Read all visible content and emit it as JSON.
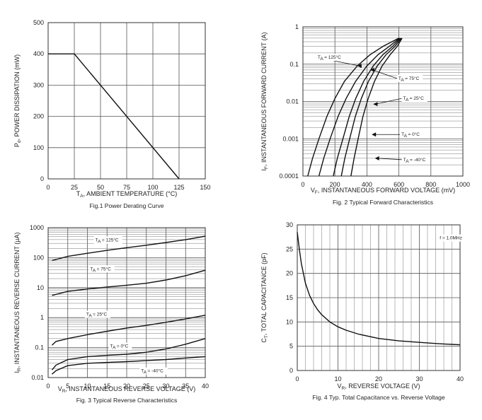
{
  "chart_data": [
    {
      "type": "line",
      "title": "Fig.1  Power Derating Curve",
      "xlabel": "T_A, AMBIENT TEMPERATURE (°C)",
      "xlabel_main": "T",
      "xlabel_sub": "A",
      "xlabel_rest": ", AMBIENT TEMPERATURE (°C)",
      "ylabel": "P_d, POWER DISSIPATION (mW)",
      "ylabel_main": "P",
      "ylabel_sub": "d",
      "ylabel_rest": ", POWER DISSIPATION (mW)",
      "xlim": [
        0,
        150
      ],
      "ylim": [
        0,
        500
      ],
      "x_ticks": [
        0,
        25,
        50,
        75,
        100,
        125,
        150
      ],
      "y_ticks": [
        0,
        100,
        200,
        300,
        400,
        500
      ],
      "grid": true,
      "series": [
        {
          "name": "Power Dissipation",
          "x": [
            0,
            25,
            125
          ],
          "y": [
            400,
            400,
            0
          ]
        }
      ]
    },
    {
      "type": "line",
      "title": "Fig. 2  Typical Forward Characteristics",
      "xlabel": "V_F, INSTANTANEOUS FORWARD VOLTAGE (mV)",
      "xlabel_main": "V",
      "xlabel_sub": "F",
      "xlabel_rest": ", INSTANTANEOUS FORWARD VOLTAGE (mV)",
      "ylabel": "I_F, INSTANTANEOUS FORWARD CURRENT (A)",
      "ylabel_main": "I",
      "ylabel_sub": "F",
      "ylabel_rest": ", INSTANTANEOUS FORWARD CURRENT (A)",
      "xlim": [
        0,
        1000
      ],
      "ylim": [
        0.0001,
        1
      ],
      "yscale": "log",
      "x_ticks": [
        0,
        200,
        400,
        600,
        800,
        1000
      ],
      "y_ticks": [
        0.0001,
        0.001,
        0.01,
        0.1,
        1
      ],
      "y_tick_labels": [
        "0.0001",
        "0.001",
        "0.01",
        "0.1",
        "1"
      ],
      "grid": true,
      "series": [
        {
          "name": "TA = 125°C",
          "x": [
            30,
            60,
            100,
            150,
            200,
            260,
            340,
            420,
            500,
            600
          ],
          "y": [
            0.0001,
            0.0003,
            0.001,
            0.004,
            0.012,
            0.035,
            0.09,
            0.18,
            0.3,
            0.5
          ]
        },
        {
          "name": "TA = 75°C",
          "x": [
            100,
            130,
            170,
            220,
            270,
            330,
            400,
            470,
            540,
            605
          ],
          "y": [
            0.0001,
            0.0003,
            0.001,
            0.004,
            0.012,
            0.035,
            0.09,
            0.18,
            0.3,
            0.5
          ]
        },
        {
          "name": "TA = 25°C",
          "x": [
            190,
            215,
            250,
            290,
            330,
            380,
            440,
            500,
            560,
            610
          ],
          "y": [
            0.0001,
            0.0003,
            0.001,
            0.004,
            0.012,
            0.035,
            0.09,
            0.18,
            0.3,
            0.5
          ]
        },
        {
          "name": "TA = 0°C",
          "x": [
            240,
            262,
            292,
            328,
            365,
            410,
            465,
            520,
            575,
            615
          ],
          "y": [
            0.0001,
            0.0003,
            0.001,
            0.004,
            0.012,
            0.035,
            0.09,
            0.18,
            0.3,
            0.5
          ]
        },
        {
          "name": "TA = -40°C",
          "x": [
            300,
            320,
            345,
            375,
            408,
            448,
            495,
            545,
            590,
            620
          ],
          "y": [
            0.0001,
            0.0003,
            0.001,
            0.004,
            0.012,
            0.035,
            0.09,
            0.18,
            0.3,
            0.5
          ]
        }
      ],
      "annotations": [
        {
          "label_main": "T",
          "label_sub": "A",
          "label_rest": " = 125°C",
          "label": "TA = 125°C",
          "x": 340,
          "y": 0.09
        },
        {
          "label_main": "T",
          "label_sub": "A",
          "label_rest": " = 75°C",
          "label": "TA = 75°C",
          "x": 420,
          "y": 0.07
        },
        {
          "label_main": "T",
          "label_sub": "A",
          "label_rest": " = 25°C",
          "label": "TA = 25°C",
          "x": 440,
          "y": 0.0085
        },
        {
          "label_main": "T",
          "label_sub": "A",
          "label_rest": " = 0°C",
          "label": "TA = 0°C",
          "x": 430,
          "y": 0.0013
        },
        {
          "label_main": "T",
          "label_sub": "A",
          "label_rest": " = -40°C",
          "label": "TA = -40°C",
          "x": 450,
          "y": 0.0003
        }
      ]
    },
    {
      "type": "line",
      "title": "Fig. 3  Typical Reverse Characteristics",
      "xlabel": "V_R, INSTANTANEOUS REVERSE VOLTAGE (V)",
      "xlabel_main": "V",
      "xlabel_sub": "R",
      "xlabel_rest": ", INSTANTANEOUS REVERSE VOLTAGE (V)",
      "ylabel": "I_R, INSTANTANEOUS REVERSE CURRENT (µA)",
      "ylabel_main": "I",
      "ylabel_sub": "R",
      "ylabel_rest": ", INSTANTANEOUS REVERSE CURRENT (µA)",
      "xlim": [
        0,
        40
      ],
      "ylim": [
        0.01,
        1000
      ],
      "yscale": "log",
      "x_ticks": [
        0,
        5,
        10,
        15,
        20,
        25,
        30,
        35,
        40
      ],
      "y_ticks": [
        0.01,
        0.1,
        1,
        10,
        100,
        1000
      ],
      "y_tick_labels": [
        "0.01",
        "0.1",
        "1",
        "10",
        "100",
        "1000"
      ],
      "grid": true,
      "series": [
        {
          "name": "TA = 125°C",
          "x": [
            1,
            5,
            10,
            15,
            20,
            25,
            30,
            35,
            40
          ],
          "y": [
            80,
            110,
            140,
            175,
            215,
            260,
            320,
            400,
            520
          ]
        },
        {
          "name": "TA = 75°C",
          "x": [
            1,
            5,
            10,
            15,
            20,
            25,
            30,
            35,
            40
          ],
          "y": [
            5.5,
            7.5,
            9,
            10.5,
            12,
            14,
            18,
            25,
            38
          ]
        },
        {
          "name": "TA = 25°C",
          "x": [
            1,
            2,
            5,
            10,
            15,
            20,
            25,
            30,
            35,
            40
          ],
          "y": [
            0.12,
            0.16,
            0.2,
            0.27,
            0.35,
            0.45,
            0.55,
            0.7,
            0.9,
            1.2
          ]
        },
        {
          "name": "TA = 0°C",
          "x": [
            1,
            2,
            5,
            10,
            15,
            20,
            25,
            30,
            35,
            40
          ],
          "y": [
            0.018,
            0.026,
            0.04,
            0.05,
            0.055,
            0.06,
            0.07,
            0.09,
            0.13,
            0.2
          ]
        },
        {
          "name": "TA = -40°C",
          "x": [
            1,
            2,
            5,
            10,
            15,
            20,
            25,
            30,
            35,
            40
          ],
          "y": [
            0.013,
            0.017,
            0.025,
            0.03,
            0.032,
            0.034,
            0.037,
            0.04,
            0.045,
            0.05
          ]
        }
      ],
      "annotations": [
        {
          "label_main": "T",
          "label_sub": "A",
          "label_rest": " = 125°C",
          "label": "TA = 125°C",
          "x": 12,
          "y": 250
        },
        {
          "label_main": "T",
          "label_sub": "A",
          "label_rest": " = 75°C",
          "label": "TA = 75°C",
          "x": 12.5,
          "y": 22
        },
        {
          "label_main": "T",
          "label_sub": "A",
          "label_rest": " = 25°C",
          "label": "TA = 25°C",
          "x": 11.5,
          "y": 0.75
        },
        {
          "label_main": "T",
          "label_sub": "A",
          "label_rest": " = 0°C",
          "label": "TA = 0°C",
          "x": 16.5,
          "y": 0.08
        },
        {
          "label_main": "T",
          "label_sub": "A",
          "label_rest": " = -40°C",
          "label": "TA = -40°C",
          "x": 24,
          "y": 0.023
        }
      ]
    },
    {
      "type": "line",
      "title": "Fig. 4  Typ. Total Capacitance vs. Reverse Voltage",
      "xlabel": "V_R, REVERSE VOLTAGE (V)",
      "xlabel_main": "V",
      "xlabel_sub": "R",
      "xlabel_rest": ", REVERSE VOLTAGE (V)",
      "ylabel": "C_T, TOTAL CAPACITANCE (pF)",
      "ylabel_main": "C",
      "ylabel_sub": "T",
      "ylabel_rest": ", TOTAL CAPACITANCE (pF)",
      "xlim": [
        0,
        40
      ],
      "ylim": [
        0,
        30
      ],
      "x_ticks": [
        0,
        10,
        20,
        30,
        40
      ],
      "y_ticks": [
        0,
        5,
        10,
        15,
        20,
        25,
        30
      ],
      "grid": true,
      "series": [
        {
          "name": "f = 1.0MHz",
          "x": [
            0,
            0.5,
            1,
            2,
            3,
            4,
            5,
            6,
            8,
            10,
            12,
            15,
            20,
            25,
            30,
            35,
            40
          ],
          "y": [
            28.5,
            25,
            22,
            18,
            15.5,
            13.8,
            12.5,
            11.5,
            10,
            9,
            8.3,
            7.5,
            6.6,
            6.1,
            5.8,
            5.5,
            5.3
          ]
        }
      ],
      "annotations": [
        {
          "label": "f = 1.0MHz",
          "x": 35,
          "y": 27
        }
      ]
    }
  ]
}
